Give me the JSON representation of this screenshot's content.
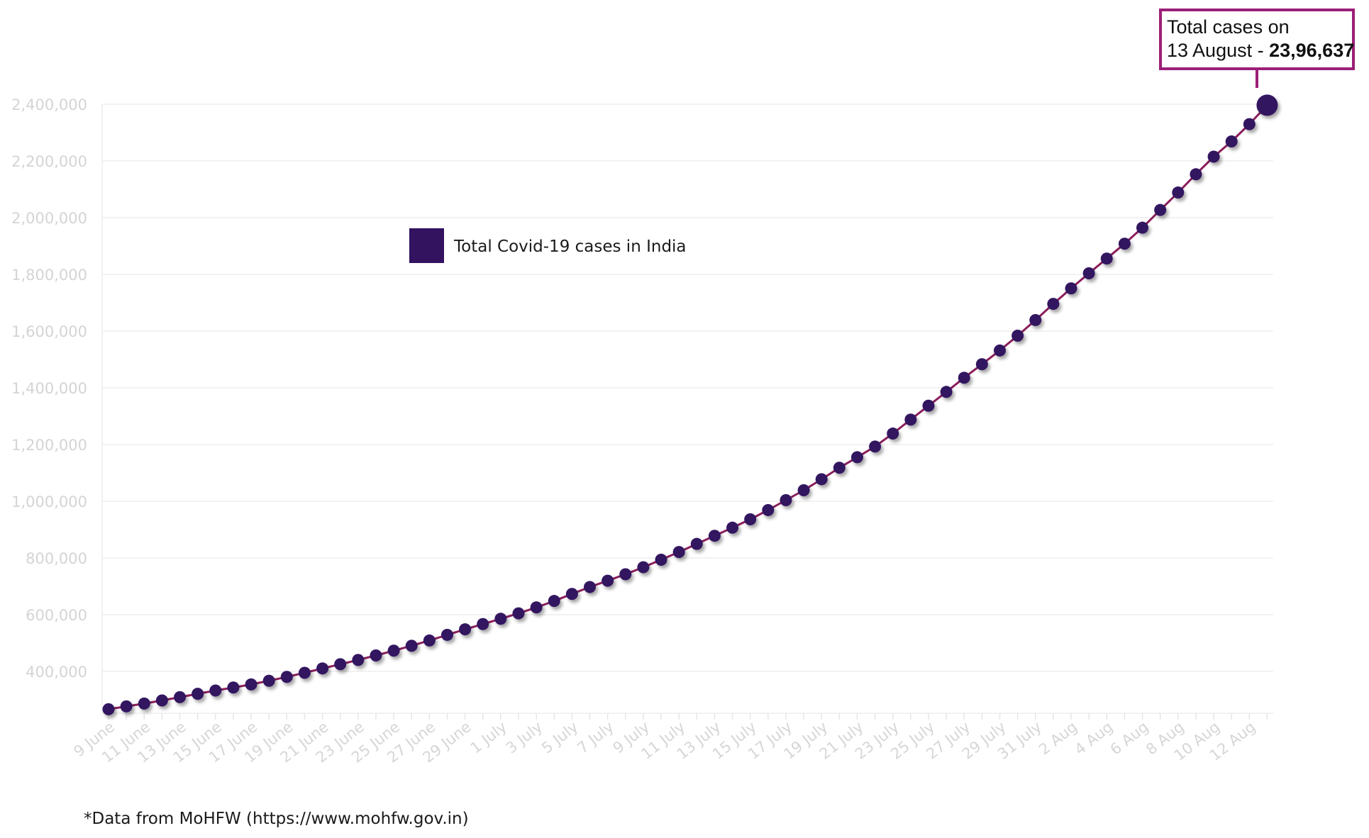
{
  "chart_data": {
    "type": "line",
    "title": "",
    "xlabel": "",
    "ylabel": "",
    "legend": {
      "label": "Total Covid-19 cases in India",
      "position": "top-left"
    },
    "ylim": [
      250000,
      2400000
    ],
    "yticks": [
      400000,
      600000,
      800000,
      1000000,
      1200000,
      1400000,
      1600000,
      1800000,
      2000000,
      2200000,
      2400000
    ],
    "ytick_labels": [
      "400,000",
      "600,000",
      "800,000",
      "1,000,000",
      "1,200,000",
      "1,400,000",
      "1,600,000",
      "1,800,000",
      "2,000,000",
      "2,200,000",
      "2,400,000"
    ],
    "x_tick_labels": [
      "9 June",
      "11 June",
      "13 June",
      "15 June",
      "17 June",
      "19 June",
      "21 June",
      "23 June",
      "25 June",
      "27 June",
      "29 June",
      "1 July",
      "3 July",
      "5 July",
      "7 July",
      "9 July",
      "11 July",
      "13 July",
      "15 July",
      "17 July",
      "19 July",
      "21 July",
      "23 July",
      "25 July",
      "27 July",
      "29 July",
      "31 July",
      "2 Aug",
      "4 Aug",
      "6 Aug",
      "8 Aug",
      "10 Aug",
      "12 Aug"
    ],
    "series": [
      {
        "name": "Total Covid-19 cases in India",
        "values": [
          266598,
          276583,
          286579,
          297535,
          308993,
          320922,
          332424,
          343091,
          354065,
          366946,
          380532,
          395048,
          410461,
          425282,
          440215,
          456183,
          473105,
          490401,
          508953,
          528859,
          548318,
          566840,
          585493,
          604641,
          625544,
          648315,
          673165,
          697413,
          719665,
          742417,
          767296,
          793802,
          820916,
          849553,
          878254,
          906752,
          936181,
          968876,
          1003832,
          1038716,
          1077618,
          1118043,
          1155191,
          1192915,
          1238635,
          1287945,
          1336861,
          1385522,
          1435453,
          1483156,
          1531669,
          1583792,
          1638870,
          1695988,
          1750723,
          1803695,
          1855745,
          1908254,
          1964536,
          2027074,
          2088611,
          2153010,
          2215074,
          2268675,
          2329638,
          2396637
        ]
      }
    ],
    "colors": {
      "line": "#8b1e5c",
      "marker": "#331260",
      "callout_border": "#9b1f78",
      "grid": "#eeeeee",
      "tick_text": "#d4d4d4"
    },
    "callout": {
      "line1": "Total cases on",
      "line2_prefix": "13 August - ",
      "line2_value": "23,96,637"
    }
  },
  "footnote": "*Data from MoHFW (https://www.mohfw.gov.in)"
}
